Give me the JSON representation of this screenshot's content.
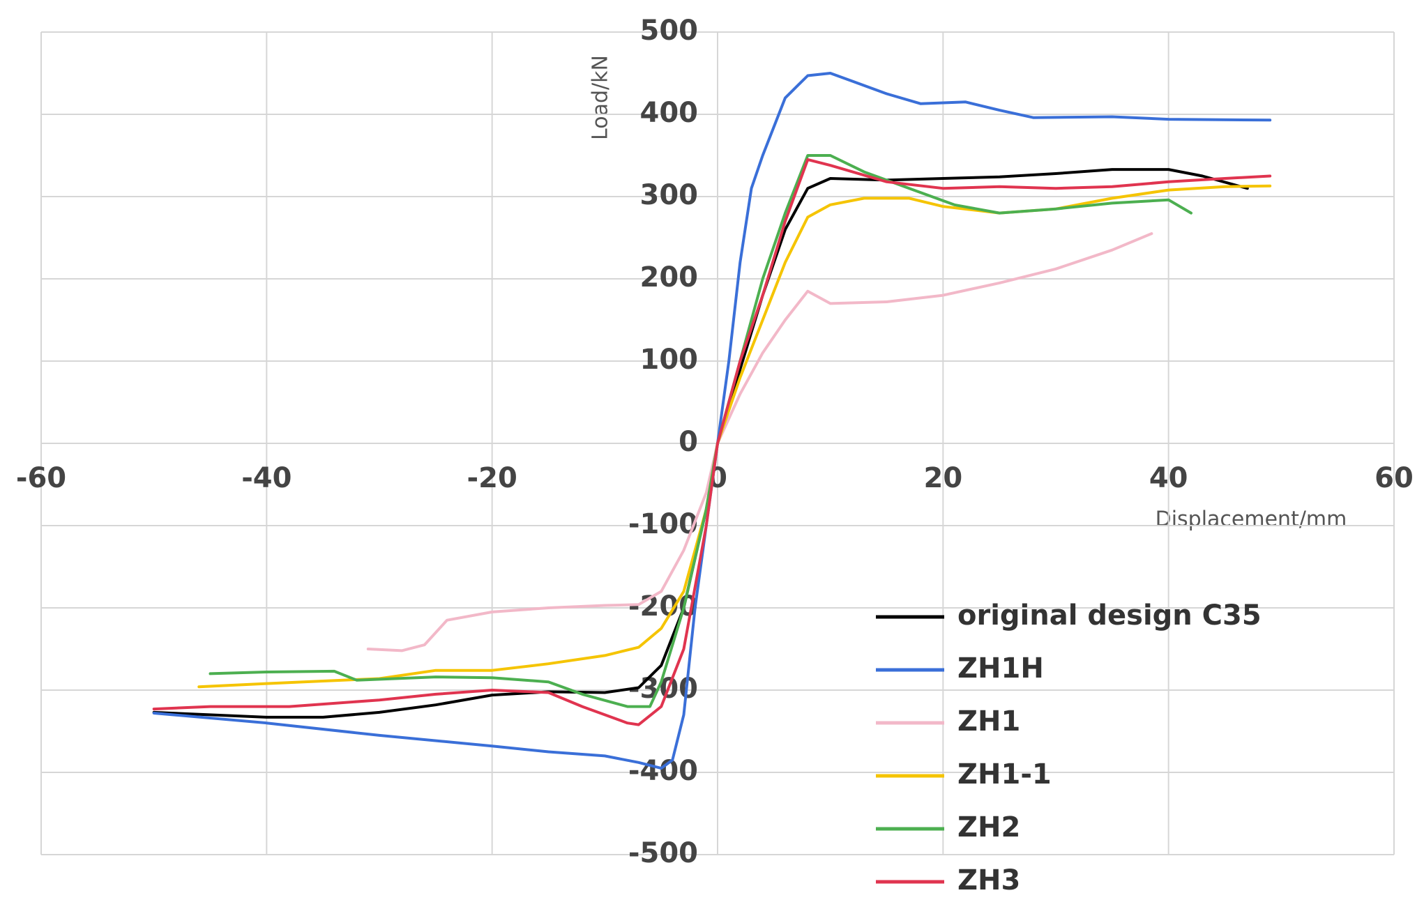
{
  "chart_data": {
    "type": "line",
    "x_label": "Displacement/mm",
    "y_label": "Load/kN",
    "xlim": [
      -60,
      60
    ],
    "xticks": [
      -60,
      -40,
      -20,
      0,
      20,
      40,
      60
    ],
    "ylim": [
      -500,
      500
    ],
    "yticks": [
      -500,
      -400,
      -300,
      -200,
      -100,
      0,
      100,
      200,
      300,
      400,
      500
    ],
    "grid": true,
    "legend": "lower right",
    "series": [
      {
        "name": "original design C35",
        "color": "#000000",
        "x": [
          -50,
          -40,
          -35,
          -30,
          -25,
          -20,
          -15,
          -10,
          -7,
          -5,
          -3,
          -1,
          0,
          2,
          4,
          6,
          8,
          10,
          15,
          20,
          25,
          30,
          35,
          40,
          43,
          47
        ],
        "values": [
          -327,
          -333,
          -333,
          -327,
          -318,
          -306,
          -302,
          -303,
          -297,
          -270,
          -200,
          -80,
          0,
          90,
          180,
          260,
          310,
          322,
          320,
          322,
          324,
          328,
          333,
          333,
          325,
          310
        ]
      },
      {
        "name": "ZH1H",
        "color": "#3a6fd8",
        "x": [
          -50,
          -40,
          -30,
          -20,
          -15,
          -10,
          -7,
          -5,
          -4,
          -3,
          -2,
          -1,
          0,
          1,
          2,
          3,
          4,
          6,
          8,
          10,
          12,
          15,
          18,
          22,
          25,
          28,
          35,
          40,
          49
        ],
        "values": [
          -328,
          -340,
          -355,
          -368,
          -375,
          -380,
          -388,
          -395,
          -385,
          -330,
          -200,
          -100,
          0,
          100,
          220,
          310,
          350,
          420,
          447,
          450,
          440,
          425,
          413,
          415,
          405,
          396,
          397,
          394,
          393
        ]
      },
      {
        "name": "ZH1",
        "color": "#f2b8c8",
        "x": [
          -31,
          -28,
          -26,
          -24,
          -20,
          -15,
          -10,
          -7,
          -5,
          -3,
          -1,
          0,
          2,
          4,
          6,
          8,
          10,
          15,
          20,
          25,
          30,
          35,
          38.5
        ],
        "values": [
          -250,
          -252,
          -245,
          -215,
          -205,
          -200,
          -197,
          -196,
          -180,
          -130,
          -60,
          0,
          60,
          110,
          150,
          185,
          170,
          172,
          180,
          195,
          212,
          235,
          255
        ]
      },
      {
        "name": "ZH1-1",
        "color": "#f5c400",
        "x": [
          -46,
          -40,
          -35,
          -30,
          -25,
          -20,
          -15,
          -10,
          -7,
          -5,
          -3,
          -1,
          0,
          2,
          4,
          6,
          8,
          10,
          13,
          17,
          20,
          25,
          30,
          35,
          40,
          45,
          49
        ],
        "values": [
          -296,
          -292,
          -289,
          -286,
          -276,
          -276,
          -268,
          -258,
          -248,
          -225,
          -180,
          -80,
          0,
          80,
          150,
          220,
          275,
          290,
          298,
          298,
          288,
          280,
          285,
          298,
          308,
          312,
          313
        ]
      },
      {
        "name": "ZH2",
        "color": "#4caf50",
        "x": [
          -45,
          -40,
          -34,
          -32,
          -25,
          -20,
          -15,
          -12,
          -8,
          -6,
          -5,
          -3,
          -1,
          0,
          2,
          4,
          6,
          8,
          10,
          13,
          17,
          21,
          25,
          30,
          35,
          40,
          42
        ],
        "values": [
          -280,
          -278,
          -277,
          -288,
          -284,
          -285,
          -290,
          -305,
          -320,
          -320,
          -290,
          -200,
          -80,
          0,
          100,
          200,
          280,
          350,
          350,
          330,
          310,
          290,
          280,
          285,
          292,
          296,
          280
        ]
      },
      {
        "name": "ZH3",
        "color": "#e0344f",
        "x": [
          -50,
          -45,
          -38,
          -30,
          -25,
          -20,
          -15,
          -12,
          -8,
          -7,
          -5,
          -3,
          -1,
          0,
          2,
          4,
          6,
          8,
          10,
          15,
          20,
          25,
          30,
          35,
          40,
          45,
          49
        ],
        "values": [
          -323,
          -320,
          -320,
          -312,
          -305,
          -300,
          -303,
          -320,
          -340,
          -342,
          -320,
          -250,
          -100,
          0,
          100,
          180,
          270,
          345,
          338,
          318,
          310,
          312,
          310,
          312,
          318,
          322,
          325
        ]
      }
    ]
  }
}
